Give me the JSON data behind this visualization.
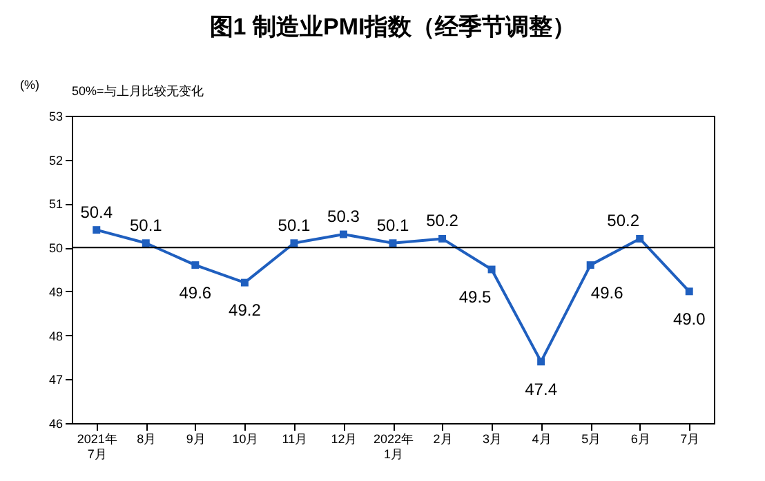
{
  "chart_data": {
    "type": "line",
    "title": "图1 制造业PMI指数（经季节调整）",
    "ylabel": "(%)",
    "annotations": [
      "50%=与上月比较无变化"
    ],
    "categories": [
      "2021年\n7月",
      "8月",
      "9月",
      "10月",
      "11月",
      "12月",
      "2022年\n1月",
      "2月",
      "3月",
      "4月",
      "5月",
      "6月",
      "7月"
    ],
    "series": [
      {
        "color": "#1f5fbf",
        "values": [
          50.4,
          50.1,
          49.6,
          49.2,
          50.1,
          50.3,
          50.1,
          50.2,
          49.5,
          47.4,
          49.6,
          50.2,
          49.0
        ]
      }
    ],
    "ylim": [
      46,
      53
    ],
    "yticks": [
      46,
      47,
      48,
      49,
      50,
      51,
      52,
      53
    ],
    "ref_lines": [
      {
        "axis": "y",
        "value": 50,
        "color": "#000000"
      }
    ],
    "value_labels": [
      "50.4",
      "50.1",
      "49.6",
      "49.2",
      "50.1",
      "50.3",
      "50.1",
      "50.2",
      "49.5",
      "47.4",
      "49.6",
      "50.2",
      "49.0"
    ],
    "marker": "square",
    "line_style": "solid",
    "grid": false
  }
}
